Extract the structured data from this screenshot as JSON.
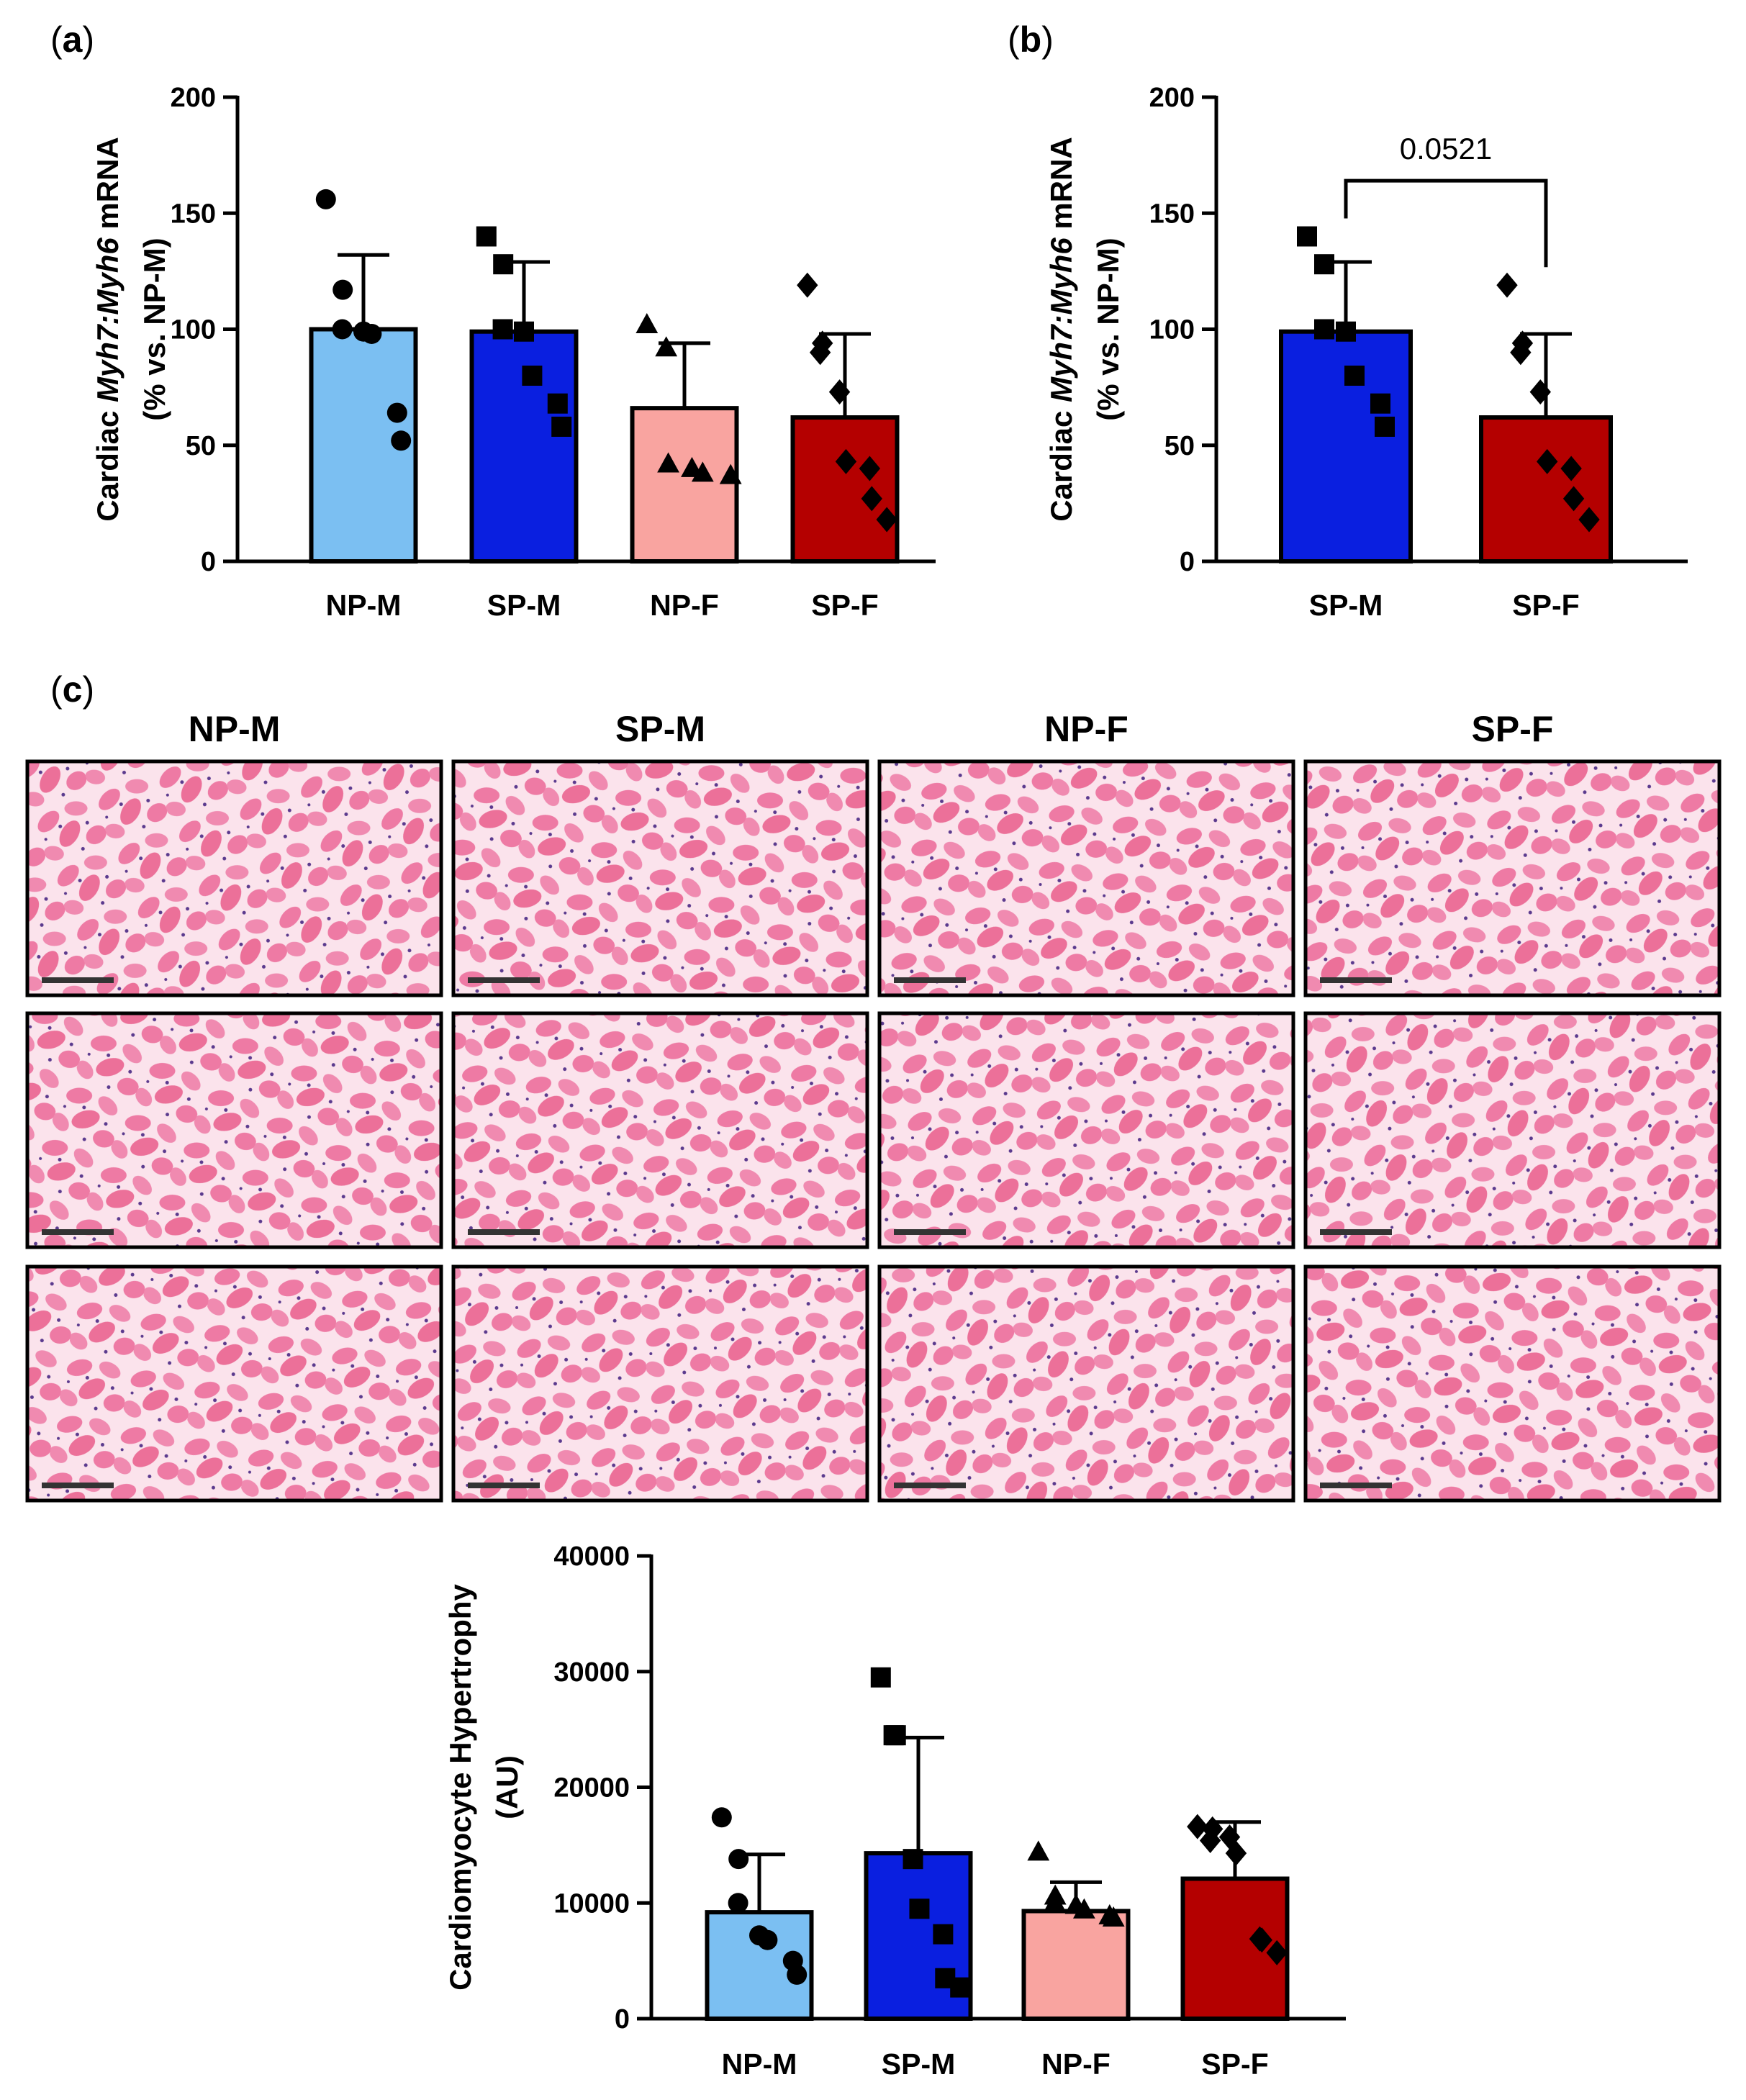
{
  "panels": {
    "a": {
      "letter": "a"
    },
    "b": {
      "letter": "b"
    },
    "c": {
      "letter": "c"
    }
  },
  "colors": {
    "NP-M": "#7bbff2",
    "SP-M": "#0a1fe0",
    "NP-F": "#f9a4a0",
    "SP-F": "#b40000",
    "tissue": "#ef7fa8",
    "tissue_bg": "#fbe6ee"
  },
  "histology": {
    "columns": [
      "NP-M",
      "SP-M",
      "NP-F",
      "SP-F"
    ],
    "rows": 3,
    "image_description_icon": "he-stained-cardiac-tissue-icon"
  },
  "chart_data": [
    {
      "id": "a",
      "type": "bar",
      "ylabel_prefix": "Cardiac ",
      "ylabel_gene": "Myh7:Myh6",
      "ylabel_suffix": " mRNA",
      "ylabel_line2": "(% vs. NP-M)",
      "ylim": [
        0,
        200
      ],
      "yticks": [
        0,
        50,
        100,
        150,
        200
      ],
      "categories": [
        "NP-M",
        "SP-M",
        "NP-F",
        "SP-F"
      ],
      "values": [
        100,
        99,
        66,
        62
      ],
      "errors": [
        32,
        30,
        28,
        36
      ],
      "markers": [
        "circle",
        "square",
        "triangle",
        "diamond"
      ],
      "points": [
        [
          156,
          117,
          100,
          99,
          98,
          64,
          52
        ],
        [
          140,
          128,
          100,
          99,
          80,
          68,
          58
        ],
        [
          102,
          92,
          42,
          40,
          38,
          37
        ],
        [
          119,
          94,
          90,
          73,
          43,
          40,
          27,
          18
        ]
      ]
    },
    {
      "id": "b",
      "type": "bar",
      "ylabel_prefix": "Cardiac ",
      "ylabel_gene": "Myh7:Myh6",
      "ylabel_suffix": " mRNA",
      "ylabel_line2": "(% vs. NP-M)",
      "ylim": [
        0,
        200
      ],
      "yticks": [
        0,
        50,
        100,
        150,
        200
      ],
      "categories": [
        "SP-M",
        "SP-F"
      ],
      "values": [
        99,
        62
      ],
      "errors": [
        30,
        36
      ],
      "markers": [
        "square",
        "diamond"
      ],
      "points": [
        [
          140,
          128,
          100,
          99,
          80,
          68,
          58
        ],
        [
          119,
          94,
          90,
          73,
          43,
          40,
          27,
          18
        ]
      ],
      "annotation": {
        "text": "0.0521",
        "between": [
          "SP-M",
          "SP-F"
        ],
        "bracket_y": 164
      }
    },
    {
      "id": "c",
      "type": "bar",
      "ylabel": "Cardiomyocyte Hypertrophy",
      "ylabel_line2": "(AU)",
      "ylim": [
        0,
        40000
      ],
      "yticks": [
        0,
        10000,
        20000,
        30000,
        40000
      ],
      "categories": [
        "NP-M",
        "SP-M",
        "NP-F",
        "SP-F"
      ],
      "values": [
        9200,
        14300,
        9300,
        12100
      ],
      "errors": [
        5000,
        10000,
        2500,
        4900
      ],
      "markers": [
        "circle",
        "square",
        "triangle",
        "diamond"
      ],
      "points": [
        [
          17400,
          13800,
          10000,
          7200,
          6800,
          5000,
          3800
        ],
        [
          29500,
          24500,
          24500,
          13800,
          9500,
          7300,
          3500,
          2700
        ],
        [
          14400,
          10600,
          10000,
          9800,
          9400,
          8900,
          8700
        ],
        [
          16600,
          16400,
          15400,
          15700,
          14300,
          6900,
          6800,
          5700
        ]
      ]
    }
  ]
}
